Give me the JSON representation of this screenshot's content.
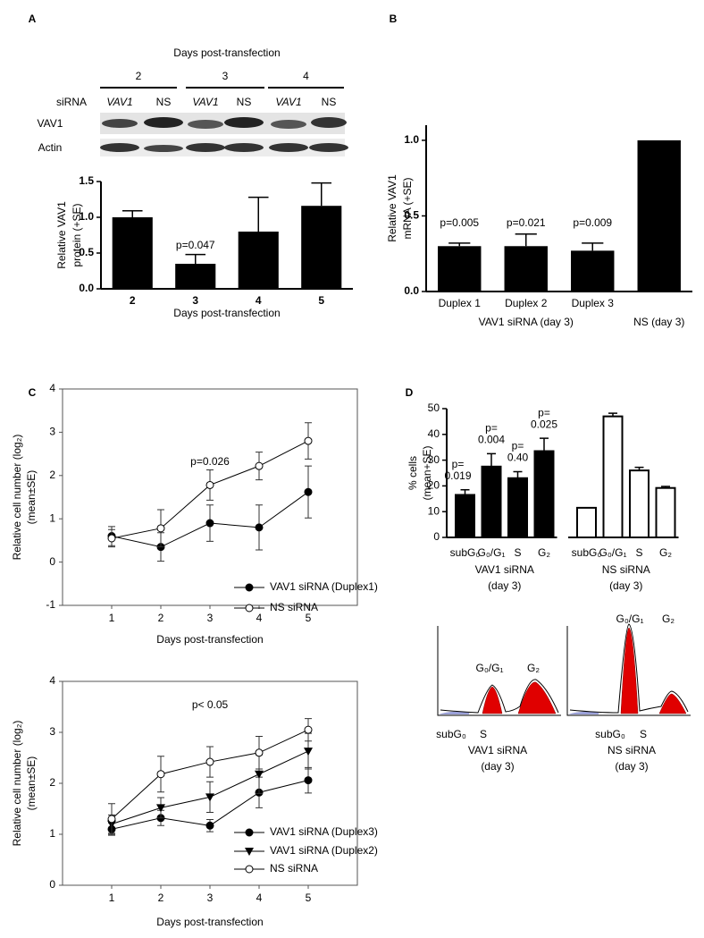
{
  "panel_labels": [
    "A",
    "B",
    "C",
    "D"
  ],
  "blot": {
    "title": "Days post-transfection",
    "days": [
      "2",
      "3",
      "4"
    ],
    "row_header": "siRNA",
    "lanes": [
      "VAV1",
      "NS",
      "VAV1",
      "NS",
      "VAV1",
      "NS"
    ],
    "rows": [
      "VAV1",
      "Actin"
    ]
  },
  "chart_data": [
    {
      "type": "bar",
      "ylabel": [
        "Relative VAV1",
        "protein (+SE)"
      ],
      "xlabel": "Days post-transfection",
      "categories": [
        "2",
        "3",
        "4",
        "5"
      ],
      "values": [
        1.0,
        0.35,
        0.8,
        1.16
      ],
      "errors": [
        0.09,
        0.13,
        0.48,
        0.32
      ],
      "annotations": [
        null,
        "p=0.047",
        null,
        null
      ],
      "color": "#000000",
      "ylim": [
        0,
        1.5
      ],
      "yticks": [
        {
          "value": 0,
          "label": "0.0"
        },
        {
          "value": 0.5,
          "label": "0.5"
        },
        {
          "value": 1,
          "label": "1.0"
        },
        {
          "value": 1.5,
          "label": "1.5"
        }
      ]
    },
    {
      "type": "bar",
      "ylabel": [
        "Relative VAV1",
        "mRNA  (+SE)"
      ],
      "group_labels": [
        "VAV1 siRNA (day 3)",
        "NS (day 3)"
      ],
      "categories": [
        "Duplex 1",
        "Duplex 2",
        "Duplex 3",
        null
      ],
      "values": [
        0.3,
        0.3,
        0.27,
        1.0
      ],
      "errors": [
        0.02,
        0.08,
        0.05,
        null
      ],
      "annotations": [
        "p=0.005",
        "p=0.021",
        "p=0.009",
        null
      ],
      "color": "#000000",
      "ylim": [
        0,
        1.1
      ],
      "yticks": [
        {
          "value": 0,
          "label": "0.0"
        },
        {
          "value": 0.5,
          "label": "0.5"
        },
        {
          "value": 1,
          "label": "1.0"
        }
      ]
    },
    {
      "type": "line",
      "ylabel": [
        "Relative cell number (log₂)",
        "(mean±SE)"
      ],
      "xlabel": "Days post-transfection",
      "x": [
        1,
        2,
        3,
        4,
        5
      ],
      "xlim": [
        0,
        6
      ],
      "xticks": [
        1,
        2,
        3,
        4,
        5
      ],
      "ylim": [
        -1,
        4
      ],
      "yticks": [
        -1,
        0,
        1,
        2,
        3,
        4
      ],
      "annotation": {
        "text": "p=0.026",
        "x": 3
      },
      "series": [
        {
          "name": "VAV1 siRNA (Duplex1)",
          "color": "#000000",
          "marker": "filled-circle",
          "values": [
            0.6,
            0.35,
            0.9,
            0.8,
            1.62
          ],
          "errors": [
            0.22,
            0.33,
            0.42,
            0.52,
            0.6
          ]
        },
        {
          "name": "NS    siRNA",
          "color": "#000000",
          "marker": "open-circle",
          "values": [
            0.55,
            0.78,
            1.78,
            2.22,
            2.8
          ],
          "errors": [
            0.2,
            0.43,
            0.35,
            0.32,
            0.42
          ]
        }
      ]
    },
    {
      "type": "line",
      "ylabel": [
        "Relative cell number (log₂)",
        "(mean±SE)"
      ],
      "xlabel": "Days post-transfection",
      "x": [
        1,
        2,
        3,
        4,
        5
      ],
      "xlim": [
        0,
        6
      ],
      "xticks": [
        1,
        2,
        3,
        4,
        5
      ],
      "ylim": [
        0,
        4
      ],
      "yticks": [
        0,
        1,
        2,
        3,
        4
      ],
      "annotation": {
        "text": "p< 0.05",
        "x": 3
      },
      "series": [
        {
          "name": "VAV1 siRNA (Duplex3)",
          "color": "#000000",
          "marker": "filled-circle",
          "values": [
            1.1,
            1.32,
            1.17,
            1.82,
            2.06
          ],
          "errors": [
            0.12,
            0.15,
            0.12,
            0.3,
            0.25
          ]
        },
        {
          "name": "VAV1 siRNA (Duplex2)",
          "color": "#000000",
          "marker": "triangle",
          "values": [
            1.2,
            1.52,
            1.73,
            2.18,
            2.63
          ],
          "errors": [
            0.18,
            0.2,
            0.3,
            0.38,
            0.35
          ]
        },
        {
          "name": "NS      siRNA",
          "color": "#000000",
          "marker": "open-circle",
          "values": [
            1.3,
            2.18,
            2.42,
            2.6,
            3.05
          ],
          "errors": [
            0.3,
            0.35,
            0.3,
            0.32,
            0.22
          ]
        }
      ]
    },
    {
      "type": "grouped-bar",
      "ylabel": [
        "% cells",
        "(mean+SE)"
      ],
      "ylim": [
        0,
        50
      ],
      "yticks": [
        0,
        10,
        20,
        30,
        40,
        50
      ],
      "groups": [
        {
          "label": [
            "VAV1 siRNA",
            "(day 3)"
          ],
          "categories": [
            "subG₀",
            "G₀/G₁",
            "S",
            "G₂"
          ],
          "values": [
            16.5,
            27.5,
            23,
            33.5
          ],
          "errors": [
            2,
            5,
            2.5,
            5
          ],
          "color": "#000000",
          "annotations": [
            [
              "p=",
              "0.019"
            ],
            [
              "p=",
              "0.004"
            ],
            [
              "p=",
              "0.40"
            ],
            [
              "p=",
              "0.025"
            ]
          ]
        },
        {
          "label": [
            "NS siRNA",
            "(day 3)"
          ],
          "categories": [
            "subG₀",
            "G₀/G₁",
            "S",
            "G₂"
          ],
          "values": [
            11.5,
            47,
            26,
            19.2
          ],
          "errors": [
            null,
            1.2,
            1.2,
            0.6
          ],
          "color": "#ffffff"
        }
      ]
    }
  ],
  "flow": [
    {
      "peaks": [
        "G₀/G₁",
        "G₂"
      ],
      "axis_labels": [
        "subG₀",
        "S"
      ],
      "caption": [
        "VAV1 siRNA",
        "(day 3)"
      ]
    },
    {
      "peaks": [
        "G₀/G₁",
        "G₂"
      ],
      "axis_labels": [
        "subG₀",
        "S"
      ],
      "caption": [
        "NS siRNA",
        "(day 3)"
      ]
    }
  ]
}
